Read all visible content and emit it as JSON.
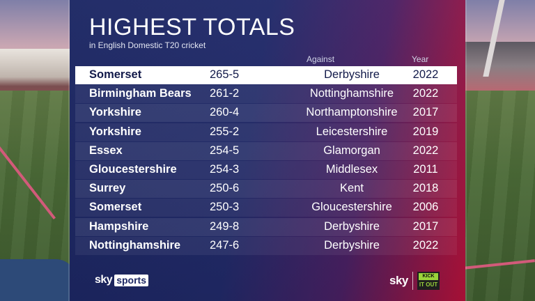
{
  "header": {
    "title": "HIGHEST TOTALS",
    "subtitle": "in English Domestic T20 cricket"
  },
  "columns": {
    "against": "Against",
    "year": "Year"
  },
  "rows": [
    {
      "team": "Somerset",
      "score": "265-5",
      "against": "Derbyshire",
      "year": "2022"
    },
    {
      "team": "Birmingham Bears",
      "score": "261-2",
      "against": "Nottinghamshire",
      "year": "2022"
    },
    {
      "team": "Yorkshire",
      "score": "260-4",
      "against": "Northamptonshire",
      "year": "2017"
    },
    {
      "team": "Yorkshire",
      "score": "255-2",
      "against": "Leicestershire",
      "year": "2019"
    },
    {
      "team": "Essex",
      "score": "254-5",
      "against": "Glamorgan",
      "year": "2022"
    },
    {
      "team": "Gloucestershire",
      "score": "254-3",
      "against": "Middlesex",
      "year": "2011"
    },
    {
      "team": "Surrey",
      "score": "250-6",
      "against": "Kent",
      "year": "2018"
    },
    {
      "team": "Somerset",
      "score": "250-3",
      "against": "Gloucestershire",
      "year": "2006"
    },
    {
      "team": "Hampshire",
      "score": "249-8",
      "against": "Derbyshire",
      "year": "2017"
    },
    {
      "team": "Nottinghamshire",
      "score": "247-6",
      "against": "Derbyshire",
      "year": "2022"
    }
  ],
  "footer": {
    "left_logo_sky": "sky",
    "left_logo_sports": "sports",
    "right_logo_sky": "sky",
    "kick_it_out_top": "KICK",
    "kick_it_out_bottom": "IT OUT"
  },
  "colors": {
    "panel_blue": "#1c2764",
    "panel_red": "#b8123b",
    "highlight_row": "#ffffff",
    "kick_it_out_green": "#9ad43a"
  }
}
